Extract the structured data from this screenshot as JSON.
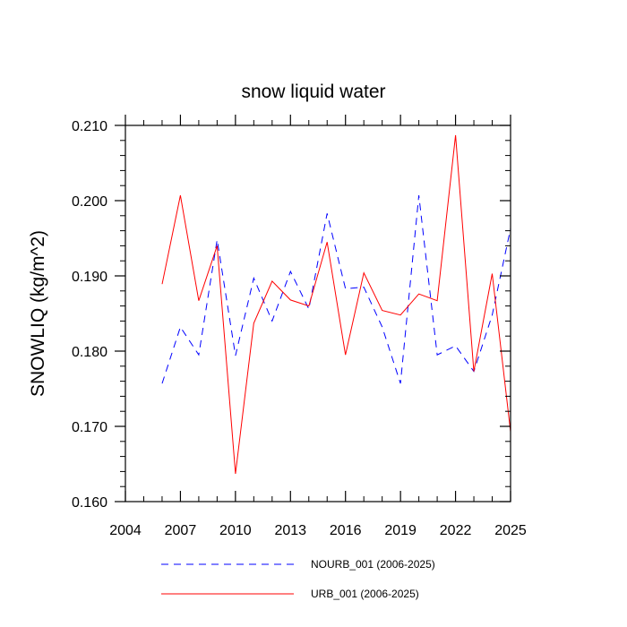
{
  "chart_data": {
    "type": "line",
    "title": "snow liquid water",
    "xlabel": "",
    "ylabel": "SNOWLIQ  (kg/m^2)",
    "xlim": [
      2004,
      2025
    ],
    "ylim": [
      0.16,
      0.21
    ],
    "x_ticks": [
      "2004",
      "2007",
      "2010",
      "2013",
      "2016",
      "2019",
      "2022",
      "2025"
    ],
    "y_ticks": [
      "0.160",
      "0.170",
      "0.180",
      "0.190",
      "0.200",
      "0.210"
    ],
    "x": [
      2006,
      2007,
      2008,
      2009,
      2010,
      2011,
      2012,
      2013,
      2014,
      2015,
      2016,
      2017,
      2018,
      2019,
      2020,
      2021,
      2022,
      2023,
      2024,
      2025
    ],
    "series": [
      {
        "name": "NOURB_001 (2006-2025)",
        "color": "#0000ff",
        "dash": "dashed",
        "values": [
          0.1757,
          0.1832,
          0.1795,
          0.1948,
          0.1794,
          0.1897,
          0.184,
          0.1906,
          0.1856,
          0.1983,
          0.1883,
          0.1885,
          0.1832,
          0.1757,
          0.2007,
          0.1795,
          0.1807,
          0.1773,
          0.1848,
          0.1963
        ]
      },
      {
        "name": "URB_001 (2006-2025)",
        "color": "#ff0000",
        "dash": "solid",
        "values": [
          0.1889,
          0.2007,
          0.1867,
          0.194,
          0.1637,
          0.1837,
          0.1893,
          0.1868,
          0.186,
          0.1945,
          0.1795,
          0.1904,
          0.1854,
          0.1848,
          0.1876,
          0.1867,
          0.2087,
          0.1773,
          0.1903,
          0.1693
        ]
      }
    ]
  }
}
